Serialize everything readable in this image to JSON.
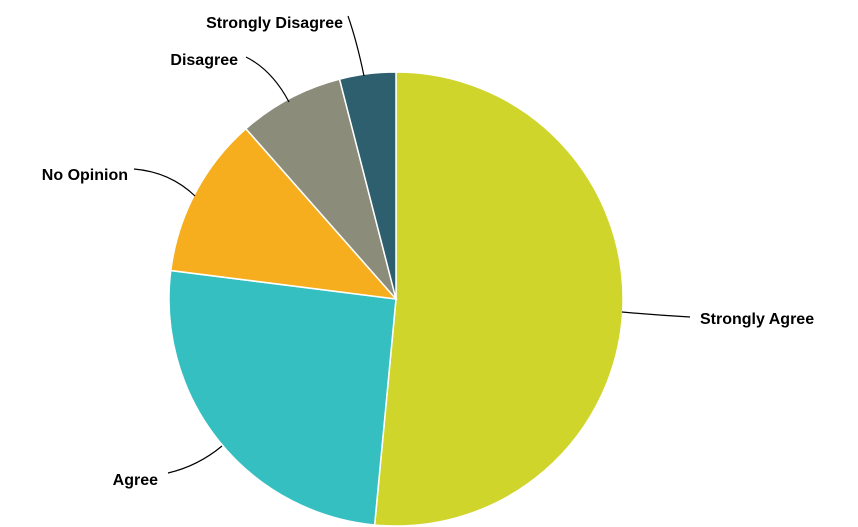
{
  "chart_data": {
    "type": "pie",
    "title": "",
    "start_angle_deg": 0,
    "direction": "clockwise",
    "slices": [
      {
        "label": "Strongly Agree",
        "value": 51.5,
        "color": "#cfd52a"
      },
      {
        "label": "Agree",
        "value": 25.5,
        "color": "#35bfc1"
      },
      {
        "label": "No Opinion",
        "value": 11.5,
        "color": "#f6ae1f"
      },
      {
        "label": "Disagree",
        "value": 7.5,
        "color": "#8b8c7a"
      },
      {
        "label": "Strongly Disagree",
        "value": 4.0,
        "color": "#2e5f6e"
      }
    ],
    "legend": "none",
    "data_labels": "outside-with-leaders"
  }
}
